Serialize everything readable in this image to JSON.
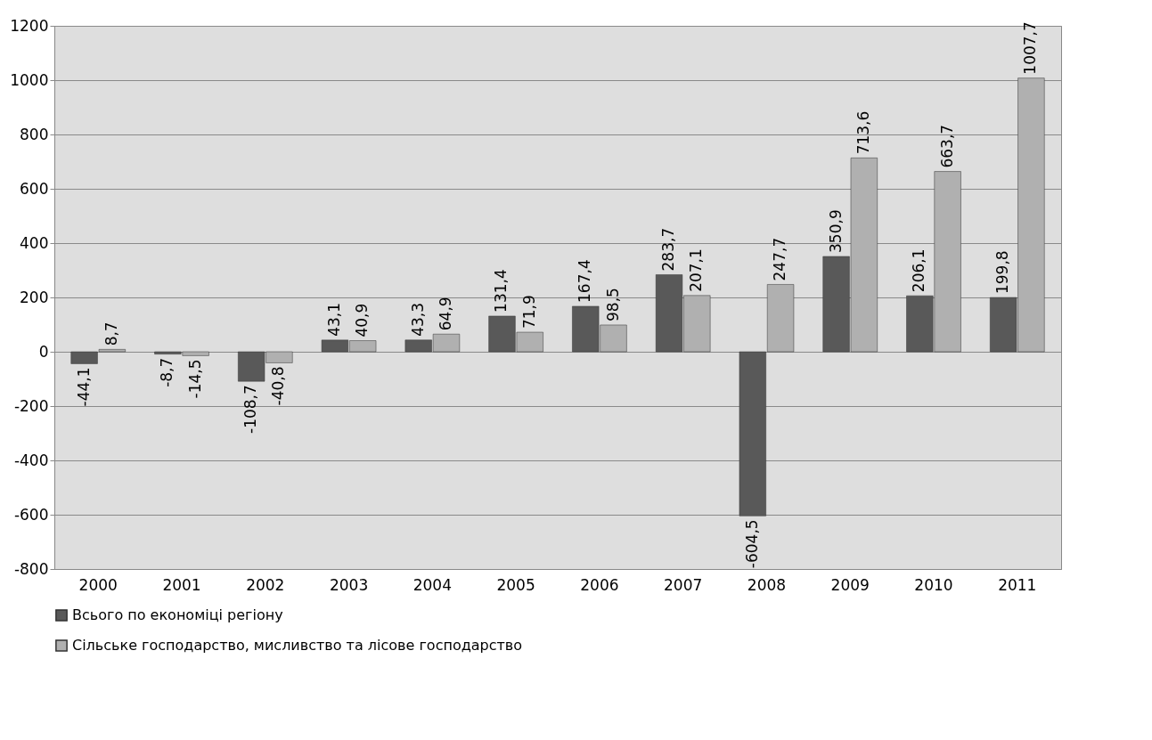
{
  "chart_data": {
    "type": "bar",
    "categories": [
      "2000",
      "2001",
      "2002",
      "2003",
      "2004",
      "2005",
      "2006",
      "2007",
      "2008",
      "2009",
      "2010",
      "2011"
    ],
    "series": [
      {
        "name": "Всього по економіці регіону",
        "color": "#595959",
        "values": [
          -44.1,
          -8.7,
          -108.7,
          43.1,
          43.3,
          131.4,
          167.4,
          283.7,
          -604.5,
          350.9,
          206.1,
          199.8
        ],
        "value_labels": [
          "-44,1",
          "-8,7",
          "-108,7",
          "43,1",
          "43,3",
          "131,4",
          "167,4",
          "283,7",
          "-604,5",
          "350,9",
          "206,1",
          "199,8"
        ]
      },
      {
        "name": "Сільське господарство, мисливство та лісове господарство",
        "color": "#b0b0b0",
        "values": [
          8.7,
          -14.5,
          -40.8,
          40.9,
          64.9,
          71.9,
          98.5,
          207.1,
          247.7,
          713.6,
          663.7,
          1007.7
        ],
        "value_labels": [
          "8,7",
          "-14,5",
          "-40,8",
          "40,9",
          "64,9",
          "71,9",
          "98,5",
          "207,1",
          "247,7",
          "713,6",
          "663,7",
          "1007,7"
        ]
      }
    ],
    "ylim": [
      -800,
      1200
    ],
    "yticks": [
      -800,
      -600,
      -400,
      -200,
      0,
      200,
      400,
      600,
      800,
      1000,
      1200
    ],
    "grid": "y",
    "legend": "bottom"
  }
}
